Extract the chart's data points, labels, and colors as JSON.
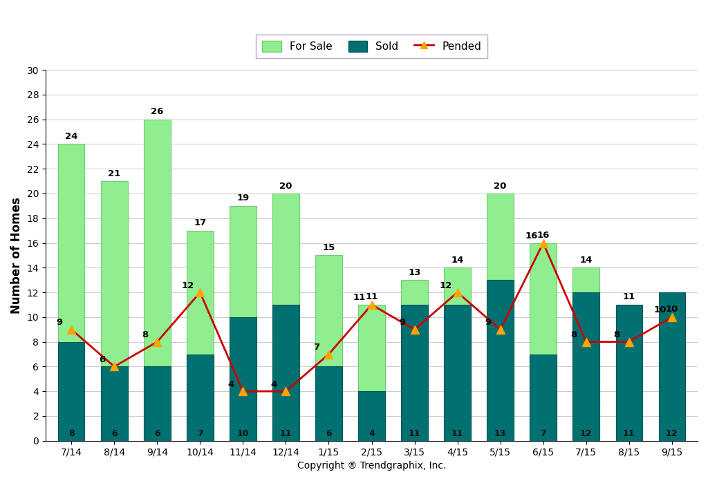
{
  "categories": [
    "7/14",
    "8/14",
    "9/14",
    "10/14",
    "11/14",
    "12/14",
    "1/15",
    "2/15",
    "3/15",
    "4/15",
    "5/15",
    "6/15",
    "7/15",
    "8/15",
    "9/15"
  ],
  "for_sale": [
    24,
    21,
    26,
    17,
    19,
    20,
    15,
    11,
    13,
    14,
    20,
    16,
    14,
    11,
    10
  ],
  "sold": [
    8,
    6,
    6,
    7,
    10,
    11,
    6,
    4,
    11,
    11,
    13,
    7,
    12,
    11,
    12
  ],
  "pended": [
    9,
    6,
    8,
    12,
    4,
    4,
    7,
    11,
    9,
    12,
    9,
    16,
    8,
    8,
    10
  ],
  "for_sale_color": "#90EE90",
  "sold_color": "#007070",
  "pended_color": "#CC0000",
  "pended_marker_color": "#FFA500",
  "ylabel": "Number of Homes",
  "xlabel": "Copyright ® Trendgraphix, Inc.",
  "ylim": [
    0,
    30
  ],
  "yticks": [
    0,
    2,
    4,
    6,
    8,
    10,
    12,
    14,
    16,
    18,
    20,
    22,
    24,
    26,
    28,
    30
  ],
  "legend_for_sale": "For Sale",
  "legend_sold": "Sold",
  "legend_pended": "Pended",
  "bar_width": 0.62
}
